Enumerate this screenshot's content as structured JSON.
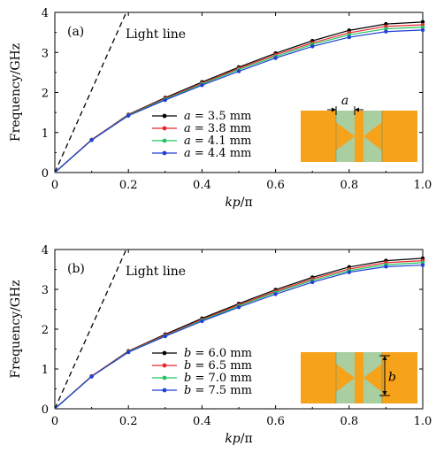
{
  "chart_data": [
    {
      "type": "line",
      "panel_label": "(a)",
      "ylabel": "Frequency/GHz",
      "xlabel": "kp/π",
      "xlim": [
        0,
        1.0
      ],
      "ylim": [
        0,
        4
      ],
      "x_ticks": [
        "0",
        "0.2",
        "0.4",
        "0.6",
        "0.8",
        "1.0"
      ],
      "y_ticks": [
        "0",
        "1",
        "2",
        "3",
        "4"
      ],
      "light_line": {
        "label": "Light line",
        "x": [
          0,
          0.194
        ],
        "y": [
          0,
          4
        ]
      },
      "x": [
        0,
        0.1,
        0.2,
        0.3,
        0.4,
        0.5,
        0.6,
        0.7,
        0.8,
        0.9,
        1.0
      ],
      "series": [
        {
          "name": "a = 3.5 mm",
          "var": "a",
          "value": "3.5 mm",
          "color": "#000000",
          "values": [
            0,
            0.82,
            1.45,
            1.87,
            2.26,
            2.63,
            2.98,
            3.29,
            3.55,
            3.71,
            3.76
          ]
        },
        {
          "name": "a = 3.8 mm",
          "var": "a",
          "value": "3.8 mm",
          "color": "#e8262a",
          "values": [
            0,
            0.82,
            1.44,
            1.85,
            2.23,
            2.6,
            2.94,
            3.24,
            3.49,
            3.65,
            3.69
          ]
        },
        {
          "name": "a = 4.1 mm",
          "var": "a",
          "value": "4.1 mm",
          "color": "#22c55e",
          "values": [
            0,
            0.81,
            1.43,
            1.83,
            2.21,
            2.57,
            2.9,
            3.2,
            3.44,
            3.59,
            3.63
          ]
        },
        {
          "name": "a = 4.4 mm",
          "var": "a",
          "value": "4.4 mm",
          "color": "#1f3fd6",
          "values": [
            0,
            0.81,
            1.42,
            1.81,
            2.18,
            2.53,
            2.86,
            3.15,
            3.38,
            3.52,
            3.56
          ]
        }
      ],
      "inset_label": "a"
    },
    {
      "type": "line",
      "panel_label": "(b)",
      "ylabel": "Frequency/GHz",
      "xlabel": "kp/π",
      "xlim": [
        0,
        1.0
      ],
      "ylim": [
        0,
        4
      ],
      "x_ticks": [
        "0",
        "0.2",
        "0.4",
        "0.6",
        "0.8",
        "1.0"
      ],
      "y_ticks": [
        "0",
        "1",
        "2",
        "3",
        "4"
      ],
      "light_line": {
        "label": "Light line",
        "x": [
          0,
          0.194
        ],
        "y": [
          0,
          4
        ]
      },
      "x": [
        0,
        0.1,
        0.2,
        0.3,
        0.4,
        0.5,
        0.6,
        0.7,
        0.8,
        0.9,
        1.0
      ],
      "series": [
        {
          "name": "b = 6.0 mm",
          "var": "b",
          "value": "6.0 mm",
          "color": "#000000",
          "values": [
            0,
            0.82,
            1.45,
            1.87,
            2.27,
            2.64,
            2.99,
            3.3,
            3.56,
            3.72,
            3.78
          ]
        },
        {
          "name": "b = 6.5 mm",
          "var": "b",
          "value": "6.5 mm",
          "color": "#e8262a",
          "values": [
            0,
            0.82,
            1.44,
            1.85,
            2.24,
            2.61,
            2.95,
            3.26,
            3.51,
            3.67,
            3.72
          ]
        },
        {
          "name": "b = 7.0 mm",
          "var": "b",
          "value": "7.0 mm",
          "color": "#22c55e",
          "values": [
            0,
            0.81,
            1.43,
            1.83,
            2.22,
            2.58,
            2.92,
            3.22,
            3.47,
            3.62,
            3.67
          ]
        },
        {
          "name": "b = 7.5 mm",
          "var": "b",
          "value": "7.5 mm",
          "color": "#1f3fd6",
          "values": [
            0,
            0.81,
            1.42,
            1.82,
            2.2,
            2.55,
            2.88,
            3.18,
            3.43,
            3.57,
            3.61
          ]
        }
      ],
      "inset_label": "b"
    }
  ],
  "colors": {
    "inset_metal": "#f7a21b",
    "inset_gap": "#a9cfa0"
  }
}
